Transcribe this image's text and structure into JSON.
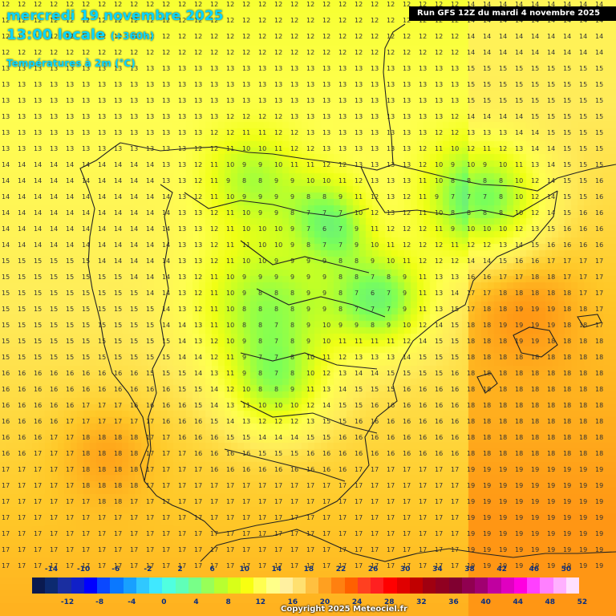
{
  "header": {
    "date_title": "mercredi 19 novembre 2025",
    "local_time": "13:00 locale",
    "lead_time": "(+360h)",
    "variable": "Températures à 2m (°C)",
    "run_info": "Run GFS 12Z du mardi 4 novembre 2025"
  },
  "legend": {
    "ticks_top": [
      "-14",
      "-10",
      "-6",
      "-2",
      "2",
      "6",
      "10",
      "14",
      "18",
      "22",
      "26",
      "30",
      "34",
      "38",
      "42",
      "46",
      "50"
    ],
    "ticks_bottom": [
      "-12",
      "-8",
      "-4",
      "0",
      "4",
      "8",
      "12",
      "16",
      "20",
      "24",
      "28",
      "32",
      "36",
      "40",
      "44",
      "48",
      "52"
    ],
    "colors": [
      "#0a1a50",
      "#0c2a70",
      "#1a2ea0",
      "#1020c8",
      "#0000ff",
      "#0a48ff",
      "#0a78ff",
      "#18a0ff",
      "#30c8ff",
      "#40e8ff",
      "#50ffe0",
      "#60ffb8",
      "#78ff88",
      "#98ff58",
      "#b8ff30",
      "#d8ff18",
      "#f8ff10",
      "#ffff50",
      "#ffff88",
      "#fff0a0",
      "#ffe070",
      "#ffc040",
      "#ffa020",
      "#ff8010",
      "#ff6000",
      "#ff4020",
      "#ff2020",
      "#ff0000",
      "#e00000",
      "#c00000",
      "#a00010",
      "#900020",
      "#800030",
      "#900050",
      "#a00070",
      "#c000a0",
      "#e000c0",
      "#ff00e0",
      "#ff40ff",
      "#ff80ff",
      "#ffb0ff",
      "#ffe0ff"
    ],
    "color_0": "#0a1a50"
  },
  "footer": {
    "copyright": "Copyright 2025 Meteociel.fr"
  }
}
